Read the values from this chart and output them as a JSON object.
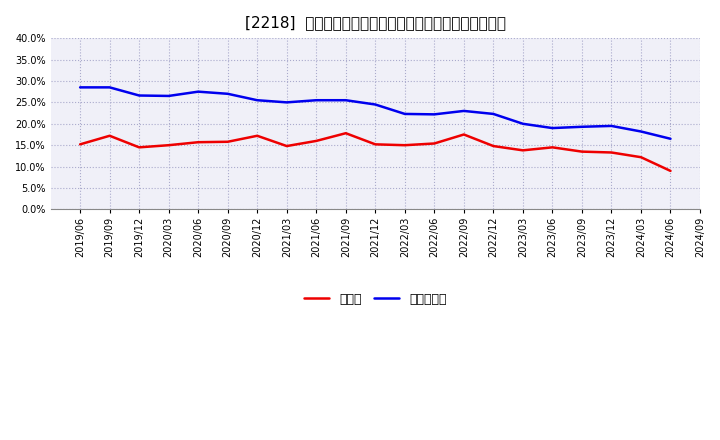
{
  "title": "[2218]  現預金、有利子負債の総資産に対する比率の推移",
  "x_labels": [
    "2019/06",
    "2019/09",
    "2019/12",
    "2020/03",
    "2020/06",
    "2020/09",
    "2020/12",
    "2021/03",
    "2021/06",
    "2021/09",
    "2021/12",
    "2022/03",
    "2022/06",
    "2022/09",
    "2022/12",
    "2023/03",
    "2023/06",
    "2023/09",
    "2023/12",
    "2024/03",
    "2024/06",
    "2024/09"
  ],
  "cash_values": [
    0.152,
    0.172,
    0.145,
    0.15,
    0.157,
    0.158,
    0.172,
    0.148,
    0.16,
    0.178,
    0.152,
    0.15,
    0.154,
    0.175,
    0.148,
    0.138,
    0.145,
    0.135,
    0.133,
    0.122,
    0.09,
    null
  ],
  "debt_values": [
    0.285,
    0.285,
    0.266,
    0.265,
    0.275,
    0.27,
    0.255,
    0.25,
    0.255,
    0.255,
    0.245,
    0.223,
    0.222,
    0.23,
    0.223,
    0.2,
    0.19,
    0.193,
    0.195,
    0.182,
    0.165,
    null
  ],
  "cash_color": "#ee0000",
  "debt_color": "#0000ee",
  "plot_bg_color": "#f0f0f8",
  "fig_bg_color": "#ffffff",
  "grid_color": "#aaaacc",
  "ylim": [
    0.0,
    0.4
  ],
  "yticks": [
    0.0,
    0.05,
    0.1,
    0.15,
    0.2,
    0.25,
    0.3,
    0.35,
    0.4
  ],
  "legend_cash": "現預金",
  "legend_debt": "有利子負債",
  "line_width": 1.8,
  "title_fontsize": 11,
  "tick_fontsize": 7,
  "legend_fontsize": 9
}
